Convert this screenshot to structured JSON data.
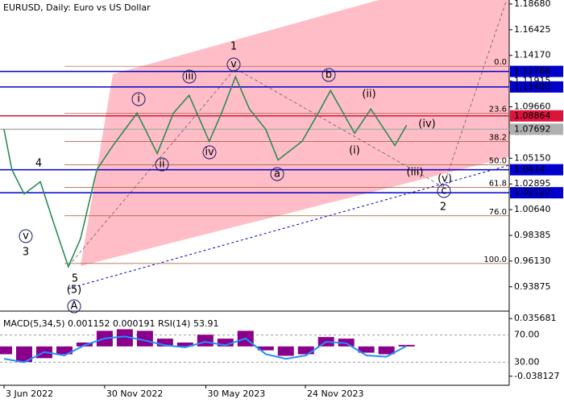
{
  "chart_data": {
    "type": "line",
    "title": "EURUSD, Daily:  Euro vs US Dollar",
    "x": [
      0,
      14,
      36,
      65,
      86,
      115,
      137,
      166,
      195,
      238,
      274,
      303,
      331,
      367,
      389,
      414,
      439,
      468,
      490,
      533,
      562,
      584,
      627,
      656,
      699,
      720
    ],
    "series": [
      {
        "name": "EURUSD",
        "color": "#2e8b57",
        "values": [
          1.0769,
          1.0415,
          1.0202,
          1.0308,
          0.9989,
          0.9564,
          0.9812,
          1.0415,
          1.0627,
          1.0911,
          1.0556,
          1.0911,
          1.1067,
          1.0663,
          1.0911,
          1.123,
          1.0946,
          1.0769,
          1.05,
          1.0663,
          1.0911,
          1.1109,
          1.0734,
          1.0946,
          1.0627,
          1.0805
        ]
      }
    ],
    "xlim": [
      -7.2,
      903.5
    ],
    "xticks": [
      {
        "value": 0,
        "label": "3 Jun 2022"
      },
      {
        "value": 180,
        "label": "30 Nov 2022"
      },
      {
        "value": 361,
        "label": "30 May 2023"
      },
      {
        "value": 539,
        "label": "24 Nov 2023"
      }
    ],
    "ylim": [
      0.9174,
      1.1903
    ],
    "yticks": [
      {
        "value": 1.1868,
        "label": "1.18680"
      },
      1.16425,
      {
        "value": 1.1417,
        "label": "1.14170"
      },
      1.11915,
      {
        "value": 1.0966,
        "label": "1.09660"
      },
      1.07405,
      {
        "value": 1.0515,
        "label": "1.05150"
      },
      1.02895,
      {
        "value": 1.0064,
        "label": "1.00640"
      },
      0.98385,
      {
        "value": 0.9613,
        "label": "0.96130"
      },
      0.93875
    ],
    "levels": [
      {
        "value": 1.12768,
        "color": "#0000cd"
      },
      {
        "value": 1.11403,
        "color": "#0000cd"
      },
      {
        "value": 1.08864,
        "color": "#dc143c"
      },
      {
        "value": 1.07692,
        "color": "#b0b0b0"
      },
      {
        "value": 1.0414,
        "color": "#0000cd"
      },
      {
        "value": 1.02122,
        "color": "#0000cd"
      }
    ],
    "fib_levels": [
      {
        "label": "0.0",
        "value": 1.1322
      },
      {
        "label": "23.6",
        "value": 1.0911
      },
      {
        "label": "38.2",
        "value": 1.0663
      },
      {
        "label": "50.0",
        "value": 1.0457
      },
      {
        "label": "61.8",
        "value": 1.0259
      },
      {
        "label": "76.0",
        "value": 1.001
      },
      {
        "label": "100.0",
        "value": 0.9592
      }
    ],
    "annotations": [
      "1",
      "2",
      "3",
      "4",
      "5",
      "(5)",
      "A",
      "i",
      "ii",
      "iii",
      "iv",
      "v",
      "v",
      "a",
      "b",
      "c",
      "(i)",
      "(ii)",
      "(iii)",
      "(iv)",
      "(v)"
    ],
    "indicator": {
      "label": "MACD(5,34,5) 0.001152 0.000191 RSI(14) 53.91",
      "x": [
        0,
        36,
        72,
        108,
        144,
        180,
        216,
        252,
        288,
        324,
        360,
        396,
        432,
        468,
        504,
        540,
        576,
        612,
        648,
        684,
        720
      ],
      "macd": {
        "color": "#8b008b",
        "values": [
          -0.01,
          -0.02,
          -0.015,
          -0.01,
          0.005,
          0.02,
          0.022,
          0.02,
          0.01,
          0.005,
          0.015,
          0.01,
          0.02,
          -0.005,
          -0.012,
          -0.01,
          0.012,
          0.01,
          -0.008,
          -0.01,
          0.002
        ]
      },
      "rsi": {
        "color": "#1e90ff",
        "values": [
          35,
          30,
          45,
          40,
          55,
          65,
          68,
          62,
          55,
          52,
          60,
          55,
          65,
          42,
          35,
          40,
          60,
          58,
          40,
          38,
          54
        ]
      },
      "macd_lim": [
        -0.0497,
        0.0452
      ],
      "macd_ticks": [
        {
          "value": 0.035681,
          "label": "0.035681"
        },
        {
          "value": -0.038127,
          "label": "-0.038127"
        }
      ],
      "rsi_lim": [
        -3.9,
        105.2
      ],
      "rsi_ticks": [
        {
          "value": 70,
          "label": "70.00"
        },
        {
          "value": 30,
          "label": "30.00"
        }
      ]
    }
  }
}
